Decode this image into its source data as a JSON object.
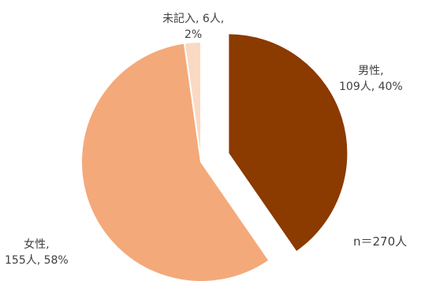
{
  "chart_data": {
    "type": "pie",
    "title": "",
    "slices": [
      {
        "category": "男性,",
        "count_label": "109人, 40%",
        "value": 109,
        "percent": 40,
        "color": "#8B3A00",
        "exploded": true
      },
      {
        "category": "女性,",
        "count_label": "155人, 58%",
        "value": 155,
        "percent": 58,
        "color": "#F4A97A",
        "exploded": false
      },
      {
        "category": "未記入, 6人,",
        "count_label": "2%",
        "value": 6,
        "percent": 2,
        "color": "#FAD9C2",
        "exploded": false
      }
    ],
    "note": "n＝270人"
  }
}
